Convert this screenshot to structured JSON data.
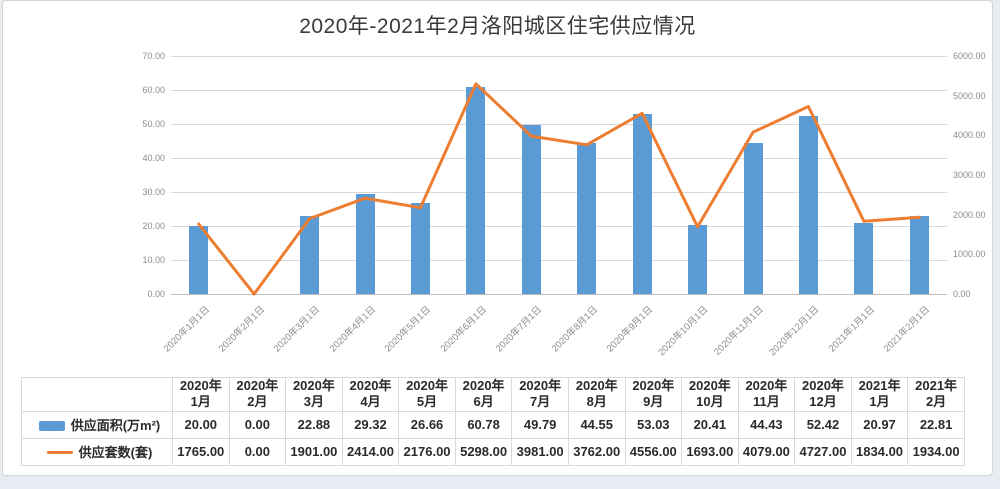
{
  "title": "2020年-2021年2月洛阳城区住宅供应情况",
  "colors": {
    "bar": "#5B9BD5",
    "line": "#ED7D31",
    "grid": "#D9D9D9",
    "axis_baseline": "#BFBFBF",
    "axis_text": "#8C8C8C"
  },
  "chart_data": {
    "type": "combo-bar-line",
    "title": "2020年-2021年2月洛阳城区住宅供应情况",
    "categories": [
      "2020年1月1日",
      "2020年2月1日",
      "2020年3月1日",
      "2020年4月1日",
      "2020年5月1日",
      "2020年6月1日",
      "2020年7月1日",
      "2020年8月1日",
      "2020年9月1日",
      "2020年10月1日",
      "2020年11月1日",
      "2020年12月1日",
      "2021年1月1日",
      "2021年2月1日"
    ],
    "series": [
      {
        "name": "供应面积(万m²)",
        "type": "bar",
        "axis": "left",
        "color": "#5B9BD5",
        "values": [
          20.0,
          0.0,
          22.88,
          29.32,
          26.66,
          60.78,
          49.79,
          44.55,
          53.03,
          20.41,
          44.43,
          52.42,
          20.97,
          22.81
        ]
      },
      {
        "name": "供应套数(套)",
        "type": "line",
        "axis": "right",
        "color": "#ED7D31",
        "values": [
          1765,
          0,
          1901,
          2414,
          2176,
          5298,
          3981,
          3762,
          4556,
          1693,
          4079,
          4727,
          1834,
          1934
        ]
      }
    ],
    "left_axis": {
      "min": 0,
      "max": 70,
      "step": 10,
      "tick_labels": [
        "0.00",
        "10.00",
        "20.00",
        "30.00",
        "40.00",
        "50.00",
        "60.00",
        "70.00"
      ]
    },
    "right_axis": {
      "min": 0,
      "max": 6000,
      "step": 1000,
      "tick_labels": [
        "0.00",
        "1000.00",
        "2000.00",
        "3000.00",
        "4000.00",
        "5000.00",
        "6000.00"
      ]
    },
    "grid": true,
    "legend_position": "in-table"
  },
  "table": {
    "column_headers": [
      {
        "line1": "2020年",
        "line2": "1月"
      },
      {
        "line1": "2020年",
        "line2": "2月"
      },
      {
        "line1": "2020年",
        "line2": "3月"
      },
      {
        "line1": "2020年",
        "line2": "4月"
      },
      {
        "line1": "2020年",
        "line2": "5月"
      },
      {
        "line1": "2020年",
        "line2": "6月"
      },
      {
        "line1": "2020年",
        "line2": "7月"
      },
      {
        "line1": "2020年",
        "line2": "8月"
      },
      {
        "line1": "2020年",
        "line2": "9月"
      },
      {
        "line1": "2020年",
        "line2": "10月"
      },
      {
        "line1": "2020年",
        "line2": "11月"
      },
      {
        "line1": "2020年",
        "line2": "12月"
      },
      {
        "line1": "2021年",
        "line2": "1月"
      },
      {
        "line1": "2021年",
        "line2": "2月"
      }
    ],
    "rows": [
      {
        "legend": "bar-swatch",
        "legend_color": "#5B9BD5",
        "label": "供应面积(万m²)",
        "values": [
          "20.00",
          "0.00",
          "22.88",
          "29.32",
          "26.66",
          "60.78",
          "49.79",
          "44.55",
          "53.03",
          "20.41",
          "44.43",
          "52.42",
          "20.97",
          "22.81"
        ]
      },
      {
        "legend": "line-swatch",
        "legend_color": "#ED7D31",
        "label": "供应套数(套)",
        "values": [
          "1765.00",
          "0.00",
          "1901.00",
          "2414.00",
          "2176.00",
          "5298.00",
          "3981.00",
          "3762.00",
          "4556.00",
          "1693.00",
          "4079.00",
          "4727.00",
          "1834.00",
          "1934.00"
        ]
      }
    ]
  }
}
